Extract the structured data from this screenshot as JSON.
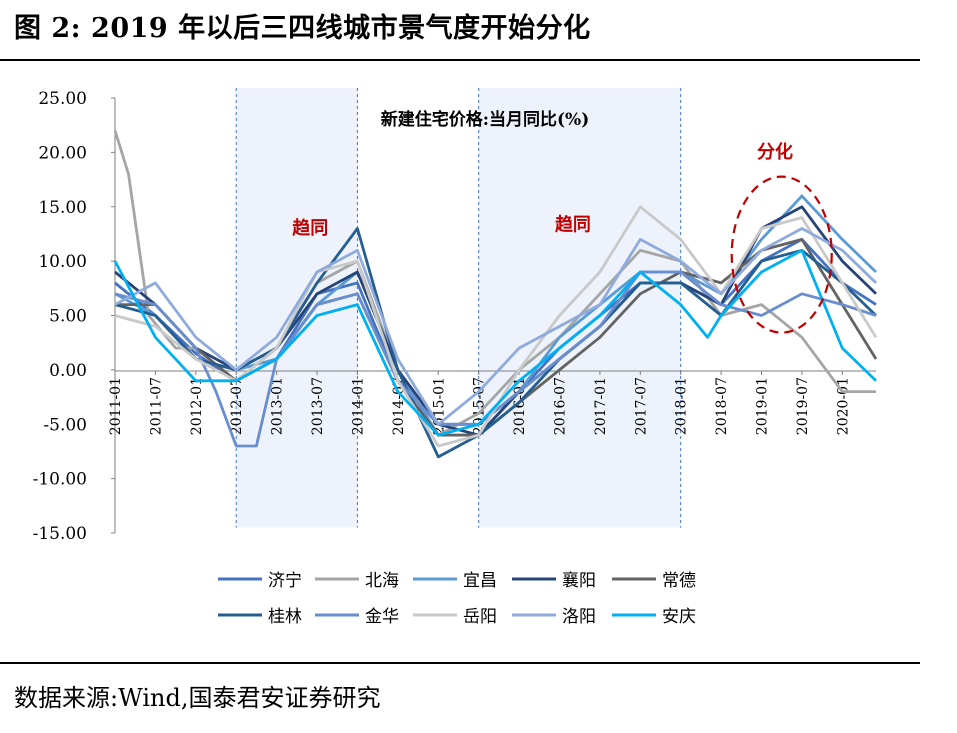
{
  "figure": {
    "title": "图 2:  2019 年以后三四线城市景气度开始分化",
    "source": "数据来源:Wind,国泰君安证券研究"
  },
  "chart_data": {
    "type": "line",
    "title": "新建住宅价格:当月同比(%)",
    "xlabel": "",
    "ylabel": "",
    "ylim": [
      -15,
      25
    ],
    "yticks": [
      "25.00",
      "20.00",
      "15.00",
      "10.00",
      "5.00",
      "0.00",
      "-5.00",
      "-10.00",
      "-15.00"
    ],
    "xticks": [
      "2011-01",
      "2011-07",
      "2012-01",
      "2012-07",
      "2013-01",
      "2013-07",
      "2014-01",
      "2014-07",
      "2015-01",
      "2015-07",
      "2016-01",
      "2016-07",
      "2017-01",
      "2017-07",
      "2018-01",
      "2018-07",
      "2019-01",
      "2019-07",
      "2020-01"
    ],
    "legend_position": "bottom",
    "annotations": [
      {
        "text": "趋同",
        "x": "2013-06",
        "y": 12.5,
        "color": "#c00000"
      },
      {
        "text": "趋同",
        "x": "2016-09",
        "y": 12.8,
        "color": "#c00000"
      },
      {
        "text": "分化",
        "x": "2019-03",
        "y": 19.5,
        "color": "#c00000"
      }
    ],
    "shaded_periods": [
      {
        "from": "2012-07",
        "to": "2014-01",
        "y": [
          -14.5,
          25
        ]
      },
      {
        "from": "2015-07",
        "to": "2018-01",
        "y": [
          -14.5,
          25
        ]
      }
    ],
    "ellipse": {
      "center": [
        "2019-04",
        10.6
      ],
      "color": "#c00000"
    },
    "series": [
      {
        "name": "济宁",
        "color": "#4472c4",
        "points": [
          [
            "2011-01",
            8
          ],
          [
            "2011-07",
            5
          ],
          [
            "2012-01",
            1.5
          ],
          [
            "2012-07",
            -1
          ],
          [
            "2013-01",
            1
          ],
          [
            "2013-07",
            7
          ],
          [
            "2014-01",
            8
          ],
          [
            "2014-07",
            -1
          ],
          [
            "2015-01",
            -5
          ],
          [
            "2015-07",
            -5
          ],
          [
            "2016-01",
            -2
          ],
          [
            "2016-07",
            2
          ],
          [
            "2017-01",
            5
          ],
          [
            "2017-07",
            8
          ],
          [
            "2018-01",
            8
          ],
          [
            "2018-07",
            6
          ],
          [
            "2019-01",
            10
          ],
          [
            "2019-07",
            12
          ],
          [
            "2020-01",
            8
          ],
          [
            "2020-06",
            6
          ]
        ]
      },
      {
        "name": "北海",
        "color": "#a5a5a5",
        "points": [
          [
            "2011-01",
            22
          ],
          [
            "2011-03",
            18
          ],
          [
            "2011-06",
            5
          ],
          [
            "2011-10",
            2
          ],
          [
            "2012-01",
            2
          ],
          [
            "2012-07",
            -1
          ],
          [
            "2013-01",
            2
          ],
          [
            "2013-07",
            8
          ],
          [
            "2014-01",
            10
          ],
          [
            "2014-07",
            0
          ],
          [
            "2015-01",
            -6
          ],
          [
            "2015-07",
            -4
          ],
          [
            "2016-01",
            0
          ],
          [
            "2016-07",
            3
          ],
          [
            "2017-01",
            7
          ],
          [
            "2017-07",
            11
          ],
          [
            "2018-01",
            10
          ],
          [
            "2018-07",
            5
          ],
          [
            "2019-01",
            6
          ],
          [
            "2019-07",
            3
          ],
          [
            "2020-01",
            -2
          ],
          [
            "2020-06",
            -2
          ]
        ]
      },
      {
        "name": "宜昌",
        "color": "#5b9bd5",
        "points": [
          [
            "2011-01",
            7
          ],
          [
            "2011-07",
            5
          ],
          [
            "2012-01",
            1
          ],
          [
            "2012-07",
            0
          ],
          [
            "2013-01",
            1
          ],
          [
            "2013-07",
            6
          ],
          [
            "2014-01",
            9
          ],
          [
            "2014-07",
            0
          ],
          [
            "2015-01",
            -6
          ],
          [
            "2015-07",
            -6
          ],
          [
            "2016-01",
            -2
          ],
          [
            "2016-07",
            3
          ],
          [
            "2017-01",
            6
          ],
          [
            "2017-07",
            9
          ],
          [
            "2018-01",
            9
          ],
          [
            "2018-07",
            7
          ],
          [
            "2019-01",
            12
          ],
          [
            "2019-07",
            16
          ],
          [
            "2020-01",
            12
          ],
          [
            "2020-06",
            9
          ]
        ]
      },
      {
        "name": "襄阳",
        "color": "#264478",
        "points": [
          [
            "2011-01",
            9
          ],
          [
            "2011-07",
            6
          ],
          [
            "2012-01",
            2
          ],
          [
            "2012-07",
            0
          ],
          [
            "2013-01",
            2
          ],
          [
            "2013-07",
            7
          ],
          [
            "2014-01",
            9
          ],
          [
            "2014-07",
            0
          ],
          [
            "2015-01",
            -5
          ],
          [
            "2015-07",
            -6
          ],
          [
            "2016-01",
            -2
          ],
          [
            "2016-07",
            1
          ],
          [
            "2017-01",
            4
          ],
          [
            "2017-07",
            8
          ],
          [
            "2018-01",
            8
          ],
          [
            "2018-07",
            6
          ],
          [
            "2019-01",
            13
          ],
          [
            "2019-07",
            15
          ],
          [
            "2020-01",
            10
          ],
          [
            "2020-06",
            7
          ]
        ]
      },
      {
        "name": "常德",
        "color": "#636363",
        "points": [
          [
            "2011-01",
            6
          ],
          [
            "2011-07",
            6
          ],
          [
            "2012-01",
            2
          ],
          [
            "2012-07",
            -1
          ],
          [
            "2013-01",
            1
          ],
          [
            "2013-07",
            6
          ],
          [
            "2014-01",
            7
          ],
          [
            "2014-07",
            -1
          ],
          [
            "2015-01",
            -6
          ],
          [
            "2015-07",
            -6
          ],
          [
            "2016-01",
            -3
          ],
          [
            "2016-07",
            0
          ],
          [
            "2017-01",
            3
          ],
          [
            "2017-07",
            7
          ],
          [
            "2018-01",
            9
          ],
          [
            "2018-07",
            8
          ],
          [
            "2019-01",
            11
          ],
          [
            "2019-07",
            12
          ],
          [
            "2020-01",
            6
          ],
          [
            "2020-06",
            1
          ]
        ]
      },
      {
        "name": "桂林",
        "color": "#255e91",
        "points": [
          [
            "2011-01",
            6
          ],
          [
            "2011-07",
            5
          ],
          [
            "2012-01",
            1
          ],
          [
            "2012-07",
            0
          ],
          [
            "2013-01",
            2
          ],
          [
            "2013-07",
            8
          ],
          [
            "2014-01",
            13
          ],
          [
            "2014-07",
            0
          ],
          [
            "2015-01",
            -8
          ],
          [
            "2015-07",
            -6
          ],
          [
            "2016-01",
            -3
          ],
          [
            "2016-07",
            1
          ],
          [
            "2017-01",
            4
          ],
          [
            "2017-07",
            8
          ],
          [
            "2018-01",
            8
          ],
          [
            "2018-07",
            5
          ],
          [
            "2019-01",
            10
          ],
          [
            "2019-07",
            11
          ],
          [
            "2020-01",
            8
          ],
          [
            "2020-06",
            5
          ]
        ]
      },
      {
        "name": "金华",
        "color": "#698ed0",
        "points": [
          [
            "2011-01",
            7
          ],
          [
            "2011-07",
            6
          ],
          [
            "2012-01",
            2
          ],
          [
            "2012-04",
            -2
          ],
          [
            "2012-07",
            -7
          ],
          [
            "2012-10",
            -7
          ],
          [
            "2013-01",
            1
          ],
          [
            "2013-07",
            6
          ],
          [
            "2014-01",
            7
          ],
          [
            "2014-07",
            -1
          ],
          [
            "2015-01",
            -5
          ],
          [
            "2015-07",
            -5
          ],
          [
            "2016-01",
            -2
          ],
          [
            "2016-07",
            1
          ],
          [
            "2017-01",
            4
          ],
          [
            "2017-07",
            9
          ],
          [
            "2018-01",
            9
          ],
          [
            "2018-07",
            6
          ],
          [
            "2019-01",
            5
          ],
          [
            "2019-07",
            7
          ],
          [
            "2020-01",
            6
          ],
          [
            "2020-06",
            5
          ]
        ]
      },
      {
        "name": "岳阳",
        "color": "#c9c9c9",
        "points": [
          [
            "2011-01",
            5
          ],
          [
            "2011-07",
            4
          ],
          [
            "2012-01",
            1
          ],
          [
            "2012-07",
            -1
          ],
          [
            "2013-01",
            2
          ],
          [
            "2013-07",
            9
          ],
          [
            "2014-01",
            10
          ],
          [
            "2014-07",
            -1
          ],
          [
            "2015-01",
            -7
          ],
          [
            "2015-07",
            -6
          ],
          [
            "2016-01",
            0
          ],
          [
            "2016-07",
            5
          ],
          [
            "2017-01",
            9
          ],
          [
            "2017-07",
            15
          ],
          [
            "2018-01",
            12
          ],
          [
            "2018-07",
            7
          ],
          [
            "2019-01",
            13
          ],
          [
            "2019-07",
            14
          ],
          [
            "2020-01",
            8
          ],
          [
            "2020-06",
            3
          ]
        ]
      },
      {
        "name": "洛阳",
        "color": "#8faadc",
        "points": [
          [
            "2011-01",
            6
          ],
          [
            "2011-07",
            8
          ],
          [
            "2012-01",
            3
          ],
          [
            "2012-07",
            0
          ],
          [
            "2013-01",
            3
          ],
          [
            "2013-07",
            9
          ],
          [
            "2014-01",
            11
          ],
          [
            "2014-07",
            1
          ],
          [
            "2015-01",
            -5
          ],
          [
            "2015-07",
            -2
          ],
          [
            "2016-01",
            2
          ],
          [
            "2016-07",
            4
          ],
          [
            "2017-01",
            6
          ],
          [
            "2017-07",
            12
          ],
          [
            "2018-01",
            10
          ],
          [
            "2018-07",
            7
          ],
          [
            "2019-01",
            11
          ],
          [
            "2019-07",
            13
          ],
          [
            "2020-01",
            11
          ],
          [
            "2020-06",
            8
          ]
        ]
      },
      {
        "name": "安庆",
        "color": "#00b0f0",
        "points": [
          [
            "2011-01",
            10
          ],
          [
            "2011-07",
            3
          ],
          [
            "2012-01",
            -1
          ],
          [
            "2012-07",
            -1
          ],
          [
            "2013-01",
            1
          ],
          [
            "2013-07",
            5
          ],
          [
            "2014-01",
            6
          ],
          [
            "2014-07",
            -2
          ],
          [
            "2015-01",
            -6
          ],
          [
            "2015-07",
            -5
          ],
          [
            "2016-01",
            -1
          ],
          [
            "2016-07",
            2
          ],
          [
            "2017-01",
            5
          ],
          [
            "2017-07",
            9
          ],
          [
            "2018-01",
            6
          ],
          [
            "2018-05",
            3
          ],
          [
            "2018-07",
            5
          ],
          [
            "2019-01",
            9
          ],
          [
            "2019-07",
            11
          ],
          [
            "2020-01",
            2
          ],
          [
            "2020-06",
            -1
          ]
        ]
      }
    ]
  }
}
